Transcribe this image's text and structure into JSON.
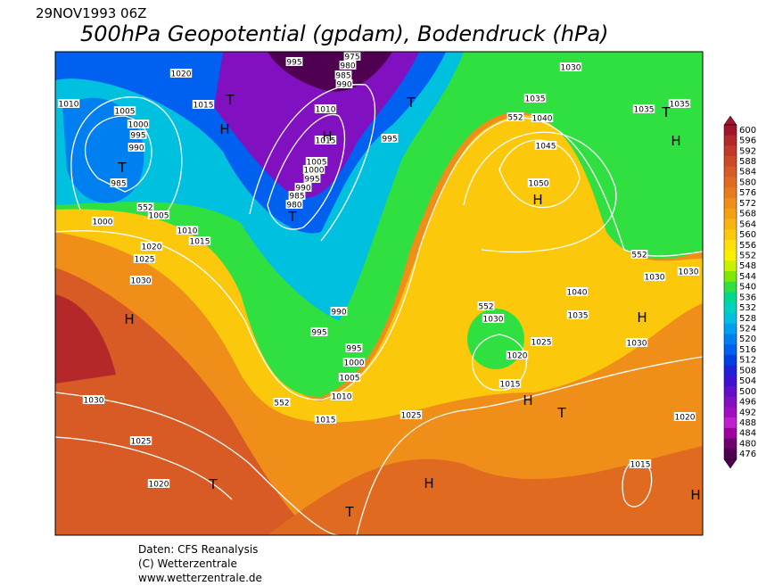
{
  "header": {
    "date": "29NOV1993 06Z",
    "title": "500hPa Geopotential (gpdam), Bodendruck (hPa)"
  },
  "colorbar": {
    "levels": [
      600,
      596,
      592,
      588,
      584,
      580,
      576,
      572,
      568,
      564,
      560,
      556,
      552,
      548,
      544,
      540,
      536,
      532,
      528,
      524,
      520,
      516,
      512,
      508,
      504,
      500,
      496,
      492,
      488,
      484,
      480,
      476
    ],
    "colors": [
      "#a0142c",
      "#b4282a",
      "#c03a2a",
      "#cc4a28",
      "#d85a24",
      "#e06a20",
      "#e87c1c",
      "#ef8e18",
      "#f4a014",
      "#f8b410",
      "#fbc80c",
      "#fde00a",
      "#f8f000",
      "#c8f000",
      "#80e800",
      "#30e040",
      "#00d890",
      "#00d0c0",
      "#00c0e0",
      "#00a0f0",
      "#0080f0",
      "#0060f0",
      "#0040e0",
      "#2020d8",
      "#4010d0",
      "#6010c8",
      "#8010c0",
      "#a010c0",
      "#c020d0",
      "#a000a0",
      "#700070",
      "#500050"
    ]
  },
  "isobar_labels": [
    "1020",
    "1015",
    "1010",
    "1005",
    "1000",
    "995",
    "990",
    "985",
    "1005",
    "1010",
    "1015",
    "1000",
    "1020",
    "1025",
    "1030",
    "995",
    "975",
    "980",
    "985",
    "990",
    "1010",
    "1015",
    "1005",
    "1000",
    "995",
    "990",
    "985",
    "980",
    "995",
    "990",
    "995",
    "995",
    "1000",
    "1005",
    "1010",
    "1015",
    "1030",
    "1035",
    "1040",
    "1045",
    "1050",
    "1035",
    "1035",
    "1040",
    "1035",
    "1030",
    "1025",
    "1020",
    "1015",
    "1030",
    "1030",
    "1030",
    "1025",
    "1020",
    "1015",
    "1030",
    "1025",
    "1020",
    "552",
    "552",
    "552",
    "552",
    "552"
  ],
  "pressure_centers": [
    "T",
    "H",
    "T",
    "H",
    "T",
    "T",
    "H",
    "T",
    "H",
    "H",
    "H",
    "H",
    "T",
    "T",
    "H",
    "T",
    "H"
  ],
  "footer": [
    "Daten: CFS Reanalysis",
    "(C) Wetterzentrale",
    "www.wetterzentrale.de"
  ]
}
